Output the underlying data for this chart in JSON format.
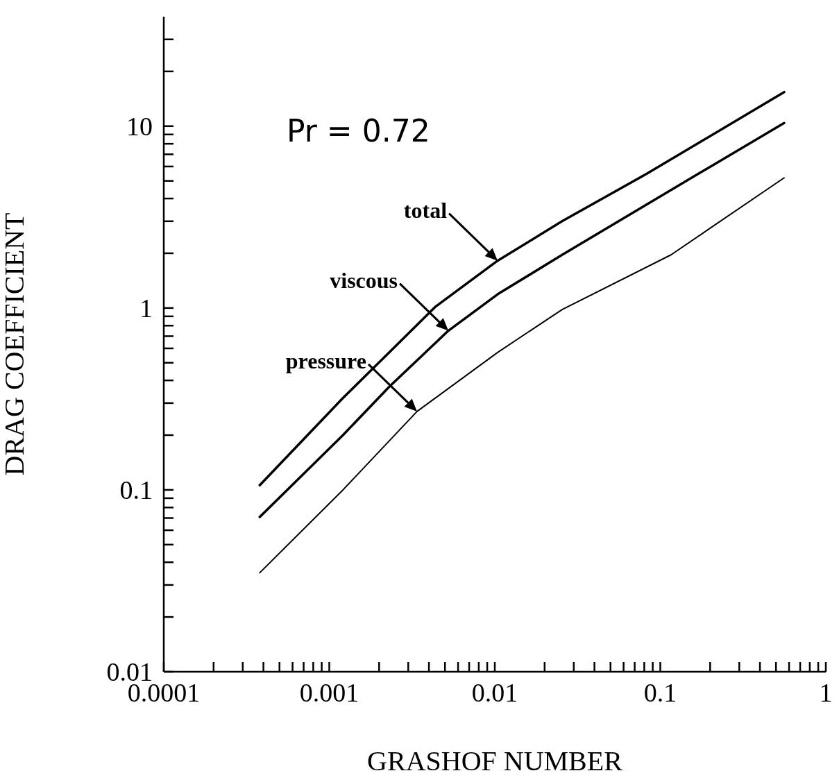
{
  "chart_data": {
    "type": "line",
    "xlabel": "GRASHOF NUMBER",
    "ylabel": "DRAG COEFFICIENT",
    "log": "xy",
    "grid": false,
    "legend": false,
    "marker": "none",
    "line_style": "solid",
    "xlim": [
      0.0001,
      1
    ],
    "ylim": [
      0.01,
      40
    ],
    "xticks": [
      {
        "value": 0.0001,
        "label": "0.0001"
      },
      {
        "value": 0.0002,
        "label": null
      },
      {
        "value": 0.0003,
        "label": null
      },
      {
        "value": 0.0004,
        "label": null
      },
      {
        "value": 0.0005,
        "label": null
      },
      {
        "value": 0.0006,
        "label": null
      },
      {
        "value": 0.0007,
        "label": null
      },
      {
        "value": 0.0008,
        "label": null
      },
      {
        "value": 0.0009,
        "label": null
      },
      {
        "value": 0.001,
        "label": "0.001"
      },
      {
        "value": 0.002,
        "label": null
      },
      {
        "value": 0.003,
        "label": null
      },
      {
        "value": 0.004,
        "label": null
      },
      {
        "value": 0.005,
        "label": null
      },
      {
        "value": 0.006,
        "label": null
      },
      {
        "value": 0.007,
        "label": null
      },
      {
        "value": 0.008,
        "label": null
      },
      {
        "value": 0.009,
        "label": null
      },
      {
        "value": 0.01,
        "label": "0.01"
      },
      {
        "value": 0.02,
        "label": null
      },
      {
        "value": 0.03,
        "label": null
      },
      {
        "value": 0.04,
        "label": null
      },
      {
        "value": 0.05,
        "label": null
      },
      {
        "value": 0.06,
        "label": null
      },
      {
        "value": 0.07,
        "label": null
      },
      {
        "value": 0.08,
        "label": null
      },
      {
        "value": 0.09,
        "label": null
      },
      {
        "value": 0.1,
        "label": "0.1"
      },
      {
        "value": 0.2,
        "label": null
      },
      {
        "value": 0.3,
        "label": null
      },
      {
        "value": 0.4,
        "label": null
      },
      {
        "value": 0.5,
        "label": null
      },
      {
        "value": 0.6,
        "label": null
      },
      {
        "value": 0.7,
        "label": null
      },
      {
        "value": 0.8,
        "label": null
      },
      {
        "value": 0.9,
        "label": null
      },
      1
    ],
    "yticks": [
      {
        "value": 0.01,
        "label": "0.01"
      },
      {
        "value": 0.02,
        "label": null
      },
      {
        "value": 0.03,
        "label": null
      },
      {
        "value": 0.04,
        "label": null
      },
      {
        "value": 0.05,
        "label": null
      },
      {
        "value": 0.06,
        "label": null
      },
      {
        "value": 0.07,
        "label": null
      },
      {
        "value": 0.08,
        "label": null
      },
      {
        "value": 0.09,
        "label": null
      },
      {
        "value": 0.1,
        "label": "0.1"
      },
      {
        "value": 0.2,
        "label": null
      },
      {
        "value": 0.3,
        "label": null
      },
      {
        "value": 0.4,
        "label": null
      },
      {
        "value": 0.5,
        "label": null
      },
      {
        "value": 0.6,
        "label": null
      },
      {
        "value": 0.7,
        "label": null
      },
      {
        "value": 0.8,
        "label": null
      },
      {
        "value": 0.9,
        "label": null
      },
      1,
      {
        "value": 2,
        "label": null
      },
      {
        "value": 3,
        "label": null
      },
      {
        "value": 4,
        "label": null
      },
      {
        "value": 5,
        "label": null
      },
      {
        "value": 6,
        "label": null
      },
      {
        "value": 7,
        "label": null
      },
      {
        "value": 8,
        "label": null
      },
      {
        "value": 9,
        "label": null
      },
      10,
      {
        "value": 20,
        "label": null
      },
      {
        "value": 30,
        "label": null
      }
    ],
    "series": [
      {
        "color": "#000000",
        "x": [
          0.00038,
          0.00121,
          0.0044,
          0.0104,
          0.0255,
          0.0836,
          0.56
        ],
        "values": [
          0.106,
          0.32,
          1.02,
          1.82,
          3.0,
          5.5,
          15.4
        ]
      },
      {
        "color": "#000000",
        "x": [
          0.00038,
          0.00121,
          0.00231,
          0.00524,
          0.0104,
          0.0255,
          0.16,
          0.56
        ],
        "values": [
          0.071,
          0.2,
          0.37,
          0.75,
          1.19,
          1.96,
          5.3,
          10.4
        ]
      },
      {
        "color": "#000000",
        "x": [
          0.00038,
          0.00121,
          0.00339,
          0.0104,
          0.0255,
          0.116,
          0.56
        ],
        "values": [
          0.035,
          0.1,
          0.27,
          0.57,
          0.98,
          1.96,
          5.2
        ]
      }
    ],
    "annotations": [
      "Pr = 0.72",
      "total",
      "viscous",
      "pressure"
    ]
  }
}
